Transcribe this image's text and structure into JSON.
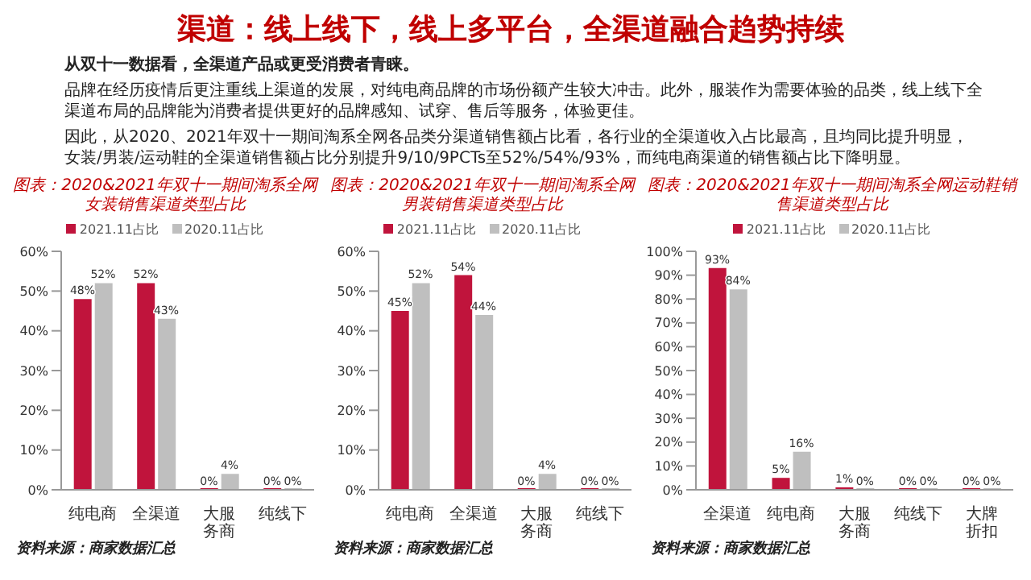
{
  "chart_data": [
    {
      "type": "other",
      "title": "渠道：线上线下，线上多平台，全渠道融合趋势持续",
      "annotations": [
        "从双十一数据看，全渠道产品或更受消费者青睐。",
        "品牌在经历疫情后更注重线上渠道的发展，对纯电商品牌的市场份额产生较大冲击。此外，服装作为需要体验的品类，线上线下全渠道布局的品牌能为消费者提供更好的品牌感知、试穿、售后等服务，体验更佳。",
        "因此，从2020、2021年双十一期间淘系全网各品类分渠道销售额占比看，各行业的全渠道收入占比最高，且均同比提升明显，女装/男装/运动鞋的全渠道销售额占比分别提升9/10/9PCTs至52%/54%/93%，而纯电商渠道的销售额占比下降明显。"
      ]
    },
    {
      "type": "bar",
      "title": "图表：2020&2021年双十一期间淘系全网女装销售渠道类型占比",
      "categories": [
        "纯电商",
        "全渠道",
        "大服务商",
        "纯线下"
      ],
      "series": [
        {
          "name": "2021.11占比",
          "color": "#c0143c",
          "values": [
            48,
            52,
            0,
            0
          ],
          "value_labels": [
            "48%",
            "52%",
            "0%",
            "0%"
          ]
        },
        {
          "name": "2020.11占比",
          "color": "#bfbfbf",
          "values": [
            52,
            43,
            4,
            0
          ],
          "value_labels": [
            "52%",
            "43%",
            "4%",
            "0%"
          ]
        }
      ],
      "ylim": [
        0,
        60
      ],
      "yticks": [
        {
          "value": 0,
          "label": "0%"
        },
        {
          "value": 10,
          "label": "10%"
        },
        {
          "value": 20,
          "label": "20%"
        },
        {
          "value": 30,
          "label": "30%"
        },
        {
          "value": 40,
          "label": "40%"
        },
        {
          "value": 50,
          "label": "50%"
        },
        {
          "value": 60,
          "label": "60%"
        }
      ],
      "legend": "top",
      "annotations": [
        "资料来源：商家数据汇总"
      ]
    },
    {
      "type": "bar",
      "title": "图表：2020&2021年双十一期间淘系全网男装销售渠道类型占比",
      "categories": [
        "纯电商",
        "全渠道",
        "大服务商",
        "纯线下"
      ],
      "series": [
        {
          "name": "2021.11占比",
          "color": "#c0143c",
          "values": [
            45,
            54,
            0,
            0
          ],
          "value_labels": [
            "45%",
            "54%",
            "0%",
            "0%"
          ]
        },
        {
          "name": "2020.11占比",
          "color": "#bfbfbf",
          "values": [
            52,
            44,
            4,
            0
          ],
          "value_labels": [
            "52%",
            "44%",
            "4%",
            "0%"
          ]
        }
      ],
      "ylim": [
        0,
        60
      ],
      "yticks": [
        {
          "value": 0,
          "label": "0%"
        },
        {
          "value": 10,
          "label": "10%"
        },
        {
          "value": 20,
          "label": "20%"
        },
        {
          "value": 30,
          "label": "30%"
        },
        {
          "value": 40,
          "label": "40%"
        },
        {
          "value": 50,
          "label": "50%"
        },
        {
          "value": 60,
          "label": "60%"
        }
      ],
      "legend": "top",
      "annotations": [
        "资料来源：商家数据汇总"
      ]
    },
    {
      "type": "bar",
      "title": "图表：2020&2021年双十一期间淘系全网运动鞋销售渠道类型占比",
      "categories": [
        "全渠道",
        "纯电商",
        "大服务商",
        "纯线下",
        "大牌折扣"
      ],
      "series": [
        {
          "name": "2021.11占比",
          "color": "#c0143c",
          "values": [
            93,
            5,
            1,
            0,
            0
          ],
          "value_labels": [
            "93%",
            "5%",
            "1%",
            "0%",
            "0%"
          ]
        },
        {
          "name": "2020.11占比",
          "color": "#bfbfbf",
          "values": [
            84,
            16,
            0,
            0,
            0
          ],
          "value_labels": [
            "84%",
            "16%",
            "0%",
            "0%",
            "0%"
          ]
        }
      ],
      "ylim": [
        0,
        100
      ],
      "yticks": [
        {
          "value": 0,
          "label": "0%"
        },
        {
          "value": 10,
          "label": "10%"
        },
        {
          "value": 20,
          "label": "20%"
        },
        {
          "value": 30,
          "label": "30%"
        },
        {
          "value": 40,
          "label": "40%"
        },
        {
          "value": 50,
          "label": "50%"
        },
        {
          "value": 60,
          "label": "60%"
        },
        {
          "value": 70,
          "label": "70%"
        },
        {
          "value": 80,
          "label": "80%"
        },
        {
          "value": 90,
          "label": "90%"
        },
        {
          "value": 100,
          "label": "100%"
        }
      ],
      "legend": "top",
      "annotations": [
        "资料来源：商家数据汇总"
      ]
    }
  ]
}
